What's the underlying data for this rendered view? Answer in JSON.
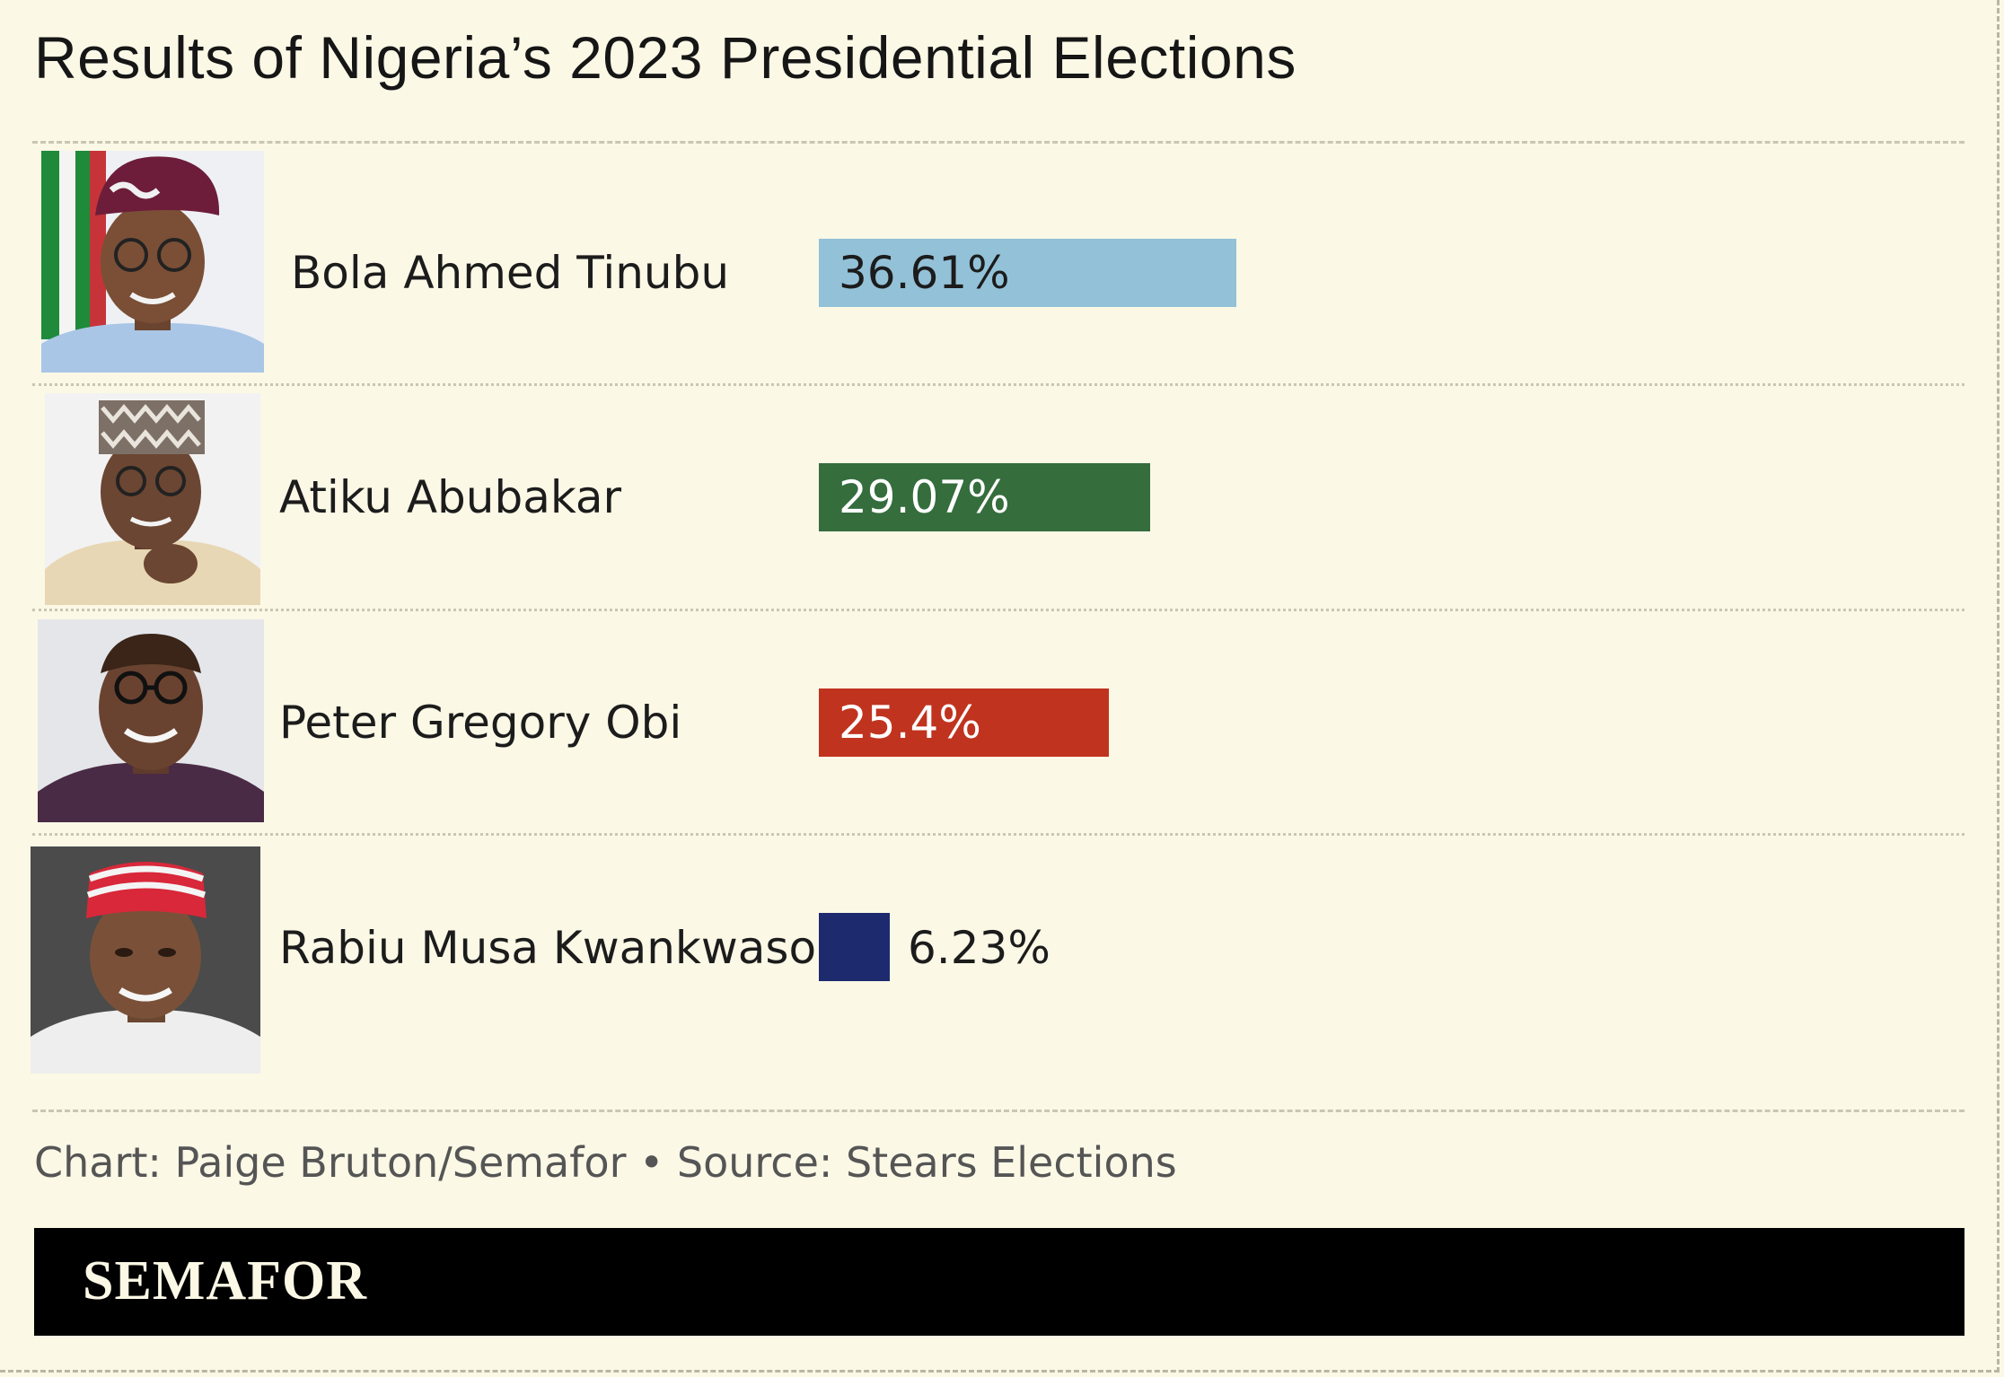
{
  "title": "Results of Nigeria’s 2023 Presidential Elections",
  "credit": "Chart: Paige Bruton/Semafor • Source: Stears Elections",
  "brand": "SEMAFOR",
  "chart_data": {
    "type": "bar",
    "orientation": "horizontal",
    "title": "Results of Nigeria’s 2023 Presidential Elections",
    "categories": [
      "Bola Ahmed Tinubu",
      "Atiku Abubakar",
      "Peter Gregory Obi",
      "Rabiu Musa Kwankwaso"
    ],
    "values": [
      36.61,
      29.07,
      25.4,
      6.23
    ],
    "value_labels": [
      "36.61%",
      "29.07%",
      "25.4%",
      "6.23%"
    ],
    "colors": [
      "#93c1d8",
      "#356d3d",
      "#c0331f",
      "#1e2a6e"
    ],
    "label_colors": [
      "#1c1c1c",
      "#ffffff",
      "#ffffff",
      "#1c1c1c"
    ],
    "photos": [
      "portrait-tinubu",
      "portrait-atiku",
      "portrait-obi",
      "portrait-kwankwaso"
    ],
    "grid": false,
    "legend": "none"
  }
}
